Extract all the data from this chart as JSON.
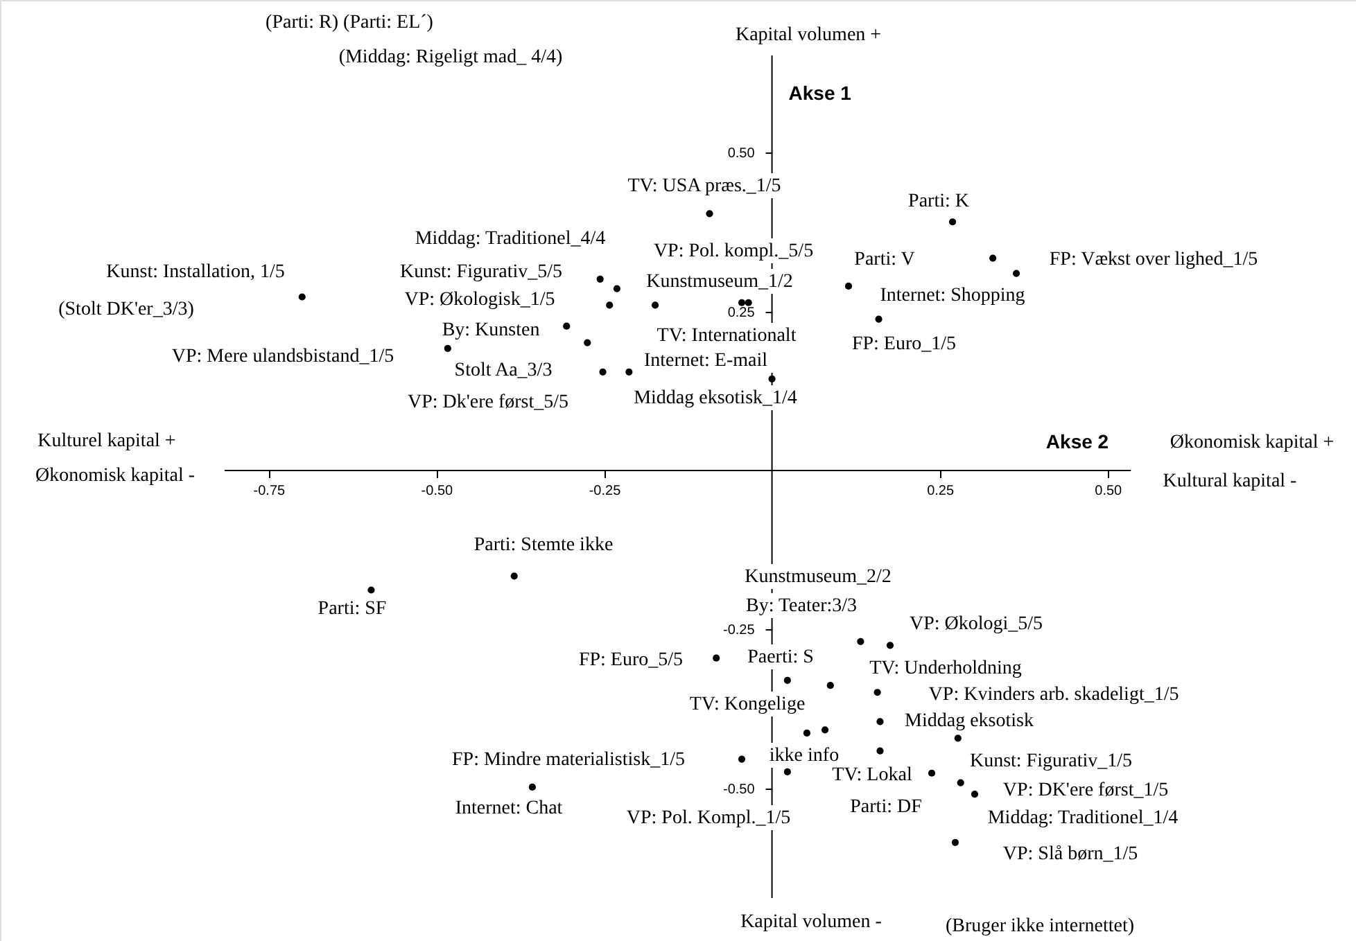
{
  "chart_data": {
    "type": "scatter",
    "xlabel": "Akse 2",
    "ylabel": "Akse 1",
    "xlim": [
      -1.15,
      0.87
    ],
    "ylim": [
      -0.74,
      0.74
    ],
    "xticks": [
      {
        "value": -0.75,
        "label": "-0.75"
      },
      {
        "value": -0.5,
        "label": "-0.50"
      },
      {
        "value": -0.25,
        "label": "-0.25"
      },
      {
        "value": 0.25,
        "label": "0.25"
      },
      {
        "value": 0.5,
        "label": "0.50"
      }
    ],
    "yticks": [
      {
        "value": -0.5,
        "label": "-0.50"
      },
      {
        "value": -0.25,
        "label": "-0.25"
      },
      {
        "value": 0.25,
        "label": "0.25"
      },
      {
        "value": 0.5,
        "label": "0.50"
      }
    ],
    "grid": false,
    "marker": "circle",
    "series": [
      {
        "color": "#000000",
        "x": [
          -0.7,
          -0.256,
          -0.231,
          -0.242,
          -0.174,
          -0.306,
          -0.275,
          -0.483,
          -0.252,
          -0.213,
          -0.093,
          0.269,
          0.329,
          0.364,
          0.114,
          0.159,
          -0.045,
          -0.035,
          0.0,
          -0.597,
          -0.384,
          -0.357,
          0.132,
          0.176,
          -0.083,
          0.023,
          0.087,
          0.157,
          0.161,
          0.277,
          0.052,
          0.079,
          -0.045,
          0.161,
          0.023,
          0.238,
          0.281,
          0.302,
          0.273
        ],
        "values": [
          0.273,
          0.301,
          0.286,
          0.26,
          0.26,
          0.227,
          0.201,
          0.192,
          0.155,
          0.155,
          0.404,
          0.391,
          0.334,
          0.31,
          0.29,
          0.238,
          0.264,
          0.264,
          0.144,
          -0.188,
          -0.166,
          -0.498,
          -0.269,
          -0.275,
          -0.295,
          -0.33,
          -0.338,
          -0.349,
          -0.395,
          -0.421,
          -0.413,
          -0.408,
          -0.454,
          -0.441,
          -0.474,
          -0.476,
          -0.491,
          -0.509,
          -0.585
        ]
      }
    ],
    "annotations": [
      "(Parti: R) (Parti: EL´)",
      "(Middag: Rigeligt mad_ 4/4)",
      "Kapital volumen +",
      "Kapital volumen -",
      "(Bruger ikke internettet)",
      "Kulturel kapital +",
      "Økonomisk kapital -",
      "Økonomisk kapital +",
      "Kultural kapital  -",
      "(Stolt DK'er_3/3)",
      "Kunst: Installation, 1/5",
      "Middag: Traditionel_4/4",
      "Kunst: Figurativ_5/5",
      "VP: Økologisk_1/5",
      "By: Kunsten",
      "VP: Mere ulandsbistand_1/5",
      "Stolt Aa_3/3",
      "VP: Dk'ere først_5/5",
      "TV: USA præs._1/5",
      "VP: Pol. kompl._5/5",
      "Kunstmuseum_1/2",
      "TV: Internationalt",
      "Internet: E-mail",
      "Middag eksotisk_1/4",
      "Parti: K",
      "Parti: V",
      "FP: Vækst over lighed_1/5",
      "Internet: Shopping",
      "FP: Euro_1/5",
      "Parti: Stemte ikke",
      "Parti: SF",
      "Kunstmuseum_2/2",
      "By: Teater:3/3",
      "VP: Økologi_5/5",
      "FP: Euro_5/5",
      "Paerti: S",
      "TV: Underholdning",
      "VP: Kvinders arb. skadeligt_1/5",
      "TV: Kongelige",
      "Middag eksotisk",
      "FP: Mindre materialistisk_1/5",
      "ikke info",
      "Kunst: Figurativ_1/5",
      "TV: Lokal",
      "VP: DK'ere først_1/5",
      "Internet: Chat",
      "Parti: DF",
      "Middag: Traditionel_1/4",
      "VP: Pol. Kompl._1/5",
      "VP: Slå børn_1/5"
    ]
  }
}
